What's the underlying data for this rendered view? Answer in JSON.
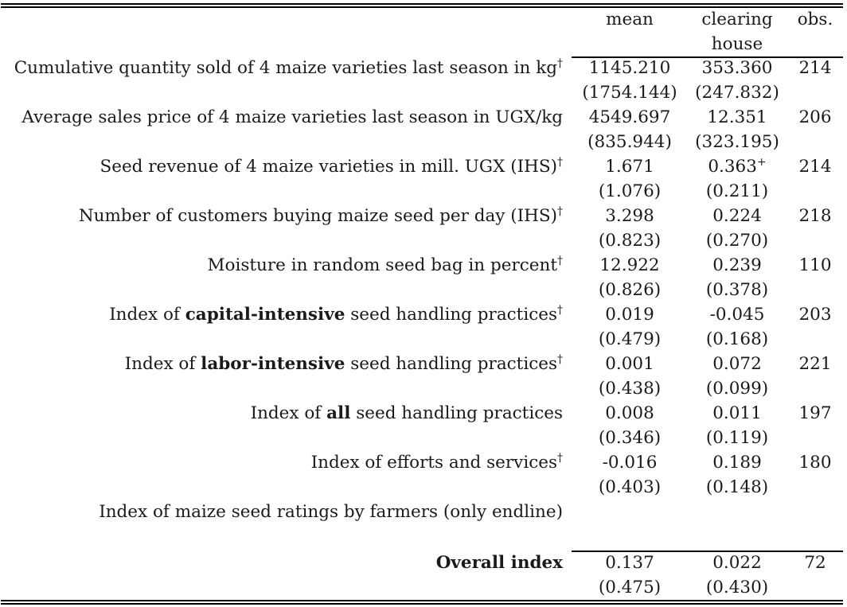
{
  "header": {
    "mean": "mean",
    "clearing_house_line1": "clearing",
    "clearing_house_line2": "house",
    "obs": "obs."
  },
  "rows": [
    {
      "label_pre": "Cumulative quantity sold of 4 maize varieties last season in kg",
      "label_bold": "",
      "label_post": "",
      "dagger": "†",
      "mean": "1145.210",
      "mean_se": "(1754.144)",
      "ch": "353.360",
      "ch_mark": "",
      "ch_se": "(247.832)",
      "obs": "214"
    },
    {
      "label_pre": "Average sales price of 4 maize varieties last season in UGX/kg",
      "label_bold": "",
      "label_post": "",
      "dagger": "",
      "mean": "4549.697",
      "mean_se": "(835.944)",
      "ch": "12.351",
      "ch_mark": "",
      "ch_se": "(323.195)",
      "obs": "206"
    },
    {
      "label_pre": "Seed revenue of 4 maize varieties in mill. UGX (IHS)",
      "label_bold": "",
      "label_post": "",
      "dagger": "†",
      "mean": "1.671",
      "mean_se": "(1.076)",
      "ch": "0.363",
      "ch_mark": "+",
      "ch_se": "(0.211)",
      "obs": "214"
    },
    {
      "label_pre": "Number of customers buying maize seed per day (IHS)",
      "label_bold": "",
      "label_post": "",
      "dagger": "†",
      "mean": "3.298",
      "mean_se": "(0.823)",
      "ch": "0.224",
      "ch_mark": "",
      "ch_se": "(0.270)",
      "obs": "218"
    },
    {
      "label_pre": "Moisture in random seed bag in percent",
      "label_bold": "",
      "label_post": "",
      "dagger": "†",
      "mean": "12.922",
      "mean_se": "(0.826)",
      "ch": "0.239",
      "ch_mark": "",
      "ch_se": "(0.378)",
      "obs": "110"
    },
    {
      "label_pre": "Index of ",
      "label_bold": "capital-intensive",
      "label_post": " seed handling practices",
      "dagger": "†",
      "mean": "0.019",
      "mean_se": "(0.479)",
      "ch": "-0.045",
      "ch_mark": "",
      "ch_se": "(0.168)",
      "obs": "203"
    },
    {
      "label_pre": "Index of ",
      "label_bold": "labor-intensive",
      "label_post": " seed handling practices",
      "dagger": "†",
      "mean": "0.001",
      "mean_se": "(0.438)",
      "ch": "0.072",
      "ch_mark": "",
      "ch_se": "(0.099)",
      "obs": "221"
    },
    {
      "label_pre": "Index of ",
      "label_bold": "all",
      "label_post": " seed handling practices",
      "dagger": "",
      "mean": "0.008",
      "mean_se": "(0.346)",
      "ch": "0.011",
      "ch_mark": "",
      "ch_se": "(0.119)",
      "obs": "197"
    },
    {
      "label_pre": "Index of efforts and services",
      "label_bold": "",
      "label_post": "",
      "dagger": "†",
      "mean": "-0.016",
      "mean_se": "(0.403)",
      "ch": "0.189",
      "ch_mark": "",
      "ch_se": "(0.148)",
      "obs": "180"
    },
    {
      "label_pre": "Index of maize seed ratings by farmers (only endline)",
      "label_bold": "",
      "label_post": "",
      "dagger": "",
      "mean": "",
      "mean_se": "",
      "ch": "",
      "ch_mark": "",
      "ch_se": "",
      "obs": ""
    }
  ],
  "overall": {
    "label": "Overall index",
    "mean": "0.137",
    "mean_se": "(0.475)",
    "ch": "0.022",
    "ch_se": "(0.430)",
    "obs": "72"
  }
}
